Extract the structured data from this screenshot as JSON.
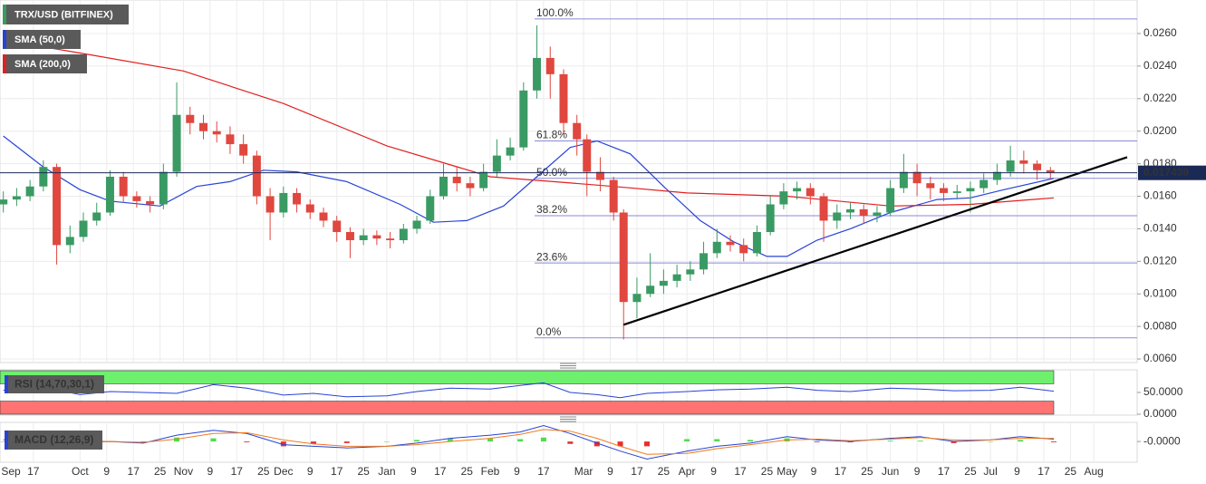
{
  "chart_data": [
    {
      "type": "candlestick",
      "title": "TRX/USD (BITFINEX)",
      "x": [
        "Sep 8",
        "Sep 12",
        "Sep 16",
        "Sep 20",
        "Sep 24",
        "Sep 28",
        "Oct 2",
        "Oct 6",
        "Oct 10",
        "Oct 14",
        "Oct 18",
        "Oct 22",
        "Oct 26",
        "Oct 30",
        "Nov 3",
        "Nov 7",
        "Nov 11",
        "Nov 15",
        "Nov 19",
        "Nov 23",
        "Nov 27",
        "Dec 1",
        "Dec 5",
        "Dec 9",
        "Dec 13",
        "Dec 17",
        "Dec 21",
        "Dec 25",
        "Dec 29",
        "Jan 2",
        "Jan 6",
        "Jan 10",
        "Jan 14",
        "Jan 18",
        "Jan 22",
        "Jan 26",
        "Jan 30",
        "Feb 3",
        "Feb 7",
        "Feb 11",
        "Feb 15",
        "Feb 19",
        "Feb 23",
        "Feb 27",
        "Mar 2",
        "Mar 6",
        "Mar 10",
        "Mar 13",
        "Mar 17",
        "Mar 21",
        "Mar 25",
        "Mar 29",
        "Apr 2",
        "Apr 6",
        "Apr 10",
        "Apr 14",
        "Apr 18",
        "Apr 22",
        "Apr 26",
        "Apr 30",
        "May 4",
        "May 8",
        "May 12",
        "May 16",
        "May 20",
        "May 24",
        "May 28",
        "Jun 1",
        "Jun 5",
        "Jun 9",
        "Jun 13",
        "Jun 17",
        "Jun 21",
        "Jun 25",
        "Jun 29",
        "Jul 3",
        "Jul 7",
        "Jul 11",
        "Jul 15",
        "Jul 19"
      ],
      "open": [
        0.0155,
        0.0158,
        0.016,
        0.0166,
        0.0178,
        0.013,
        0.0135,
        0.0145,
        0.015,
        0.0172,
        0.016,
        0.0157,
        0.0155,
        0.0175,
        0.021,
        0.0205,
        0.02,
        0.0198,
        0.0192,
        0.0185,
        0.016,
        0.015,
        0.0162,
        0.0155,
        0.015,
        0.0145,
        0.0138,
        0.0133,
        0.0136,
        0.0134,
        0.0133,
        0.014,
        0.0145,
        0.016,
        0.0172,
        0.0168,
        0.0165,
        0.0175,
        0.0185,
        0.019,
        0.0225,
        0.0245,
        0.0235,
        0.0205,
        0.0195,
        0.0175,
        0.017,
        0.015,
        0.0095,
        0.01,
        0.0105,
        0.0108,
        0.0112,
        0.0115,
        0.0125,
        0.0132,
        0.013,
        0.0125,
        0.0138,
        0.0155,
        0.0163,
        0.0165,
        0.016,
        0.0145,
        0.015,
        0.0152,
        0.0148,
        0.015,
        0.0165,
        0.0175,
        0.0168,
        0.0165,
        0.0162,
        0.0163,
        0.0165,
        0.017,
        0.0175,
        0.0182,
        0.018,
        0.0176
      ],
      "high": [
        0.0163,
        0.0165,
        0.017,
        0.0182,
        0.018,
        0.0142,
        0.015,
        0.0156,
        0.0176,
        0.0175,
        0.0163,
        0.016,
        0.018,
        0.023,
        0.0215,
        0.021,
        0.0206,
        0.0203,
        0.0198,
        0.0188,
        0.0165,
        0.0166,
        0.0165,
        0.0158,
        0.0153,
        0.0148,
        0.0141,
        0.014,
        0.0139,
        0.0138,
        0.0143,
        0.0148,
        0.0164,
        0.018,
        0.0178,
        0.0172,
        0.018,
        0.0195,
        0.0196,
        0.023,
        0.0265,
        0.0252,
        0.0238,
        0.021,
        0.0198,
        0.0184,
        0.0172,
        0.0152,
        0.011,
        0.0125,
        0.0115,
        0.0118,
        0.012,
        0.0132,
        0.014,
        0.0136,
        0.0134,
        0.0142,
        0.016,
        0.0168,
        0.0169,
        0.0168,
        0.0162,
        0.0155,
        0.0156,
        0.0155,
        0.0154,
        0.017,
        0.0186,
        0.018,
        0.0172,
        0.0168,
        0.0167,
        0.0169,
        0.0174,
        0.018,
        0.0191,
        0.0188,
        0.0182,
        0.0178
      ],
      "low": [
        0.015,
        0.0154,
        0.0157,
        0.0163,
        0.0118,
        0.0125,
        0.0132,
        0.0142,
        0.0148,
        0.0156,
        0.0153,
        0.015,
        0.0152,
        0.0172,
        0.0198,
        0.0195,
        0.0193,
        0.0186,
        0.018,
        0.0155,
        0.0133,
        0.0147,
        0.015,
        0.0146,
        0.0141,
        0.0132,
        0.0122,
        0.013,
        0.013,
        0.0128,
        0.0131,
        0.0137,
        0.0143,
        0.0158,
        0.0163,
        0.016,
        0.0163,
        0.0172,
        0.0182,
        0.0188,
        0.022,
        0.022,
        0.0198,
        0.0185,
        0.016,
        0.0163,
        0.0145,
        0.0072,
        0.0085,
        0.0098,
        0.01,
        0.0104,
        0.0108,
        0.0112,
        0.0122,
        0.0126,
        0.012,
        0.0123,
        0.0136,
        0.0152,
        0.0158,
        0.0155,
        0.0132,
        0.014,
        0.0146,
        0.0143,
        0.0144,
        0.0148,
        0.0162,
        0.016,
        0.0158,
        0.0157,
        0.0158,
        0.015,
        0.0162,
        0.0167,
        0.0172,
        0.0174,
        0.017,
        0.0171
      ],
      "close": [
        0.0158,
        0.016,
        0.0166,
        0.0178,
        0.013,
        0.0135,
        0.0145,
        0.015,
        0.0172,
        0.016,
        0.0157,
        0.0155,
        0.0175,
        0.021,
        0.0205,
        0.02,
        0.0198,
        0.0192,
        0.0185,
        0.016,
        0.015,
        0.0162,
        0.0155,
        0.015,
        0.0145,
        0.0138,
        0.0133,
        0.0136,
        0.0134,
        0.0133,
        0.014,
        0.0145,
        0.016,
        0.0172,
        0.0168,
        0.0165,
        0.0175,
        0.0185,
        0.019,
        0.0225,
        0.0245,
        0.0235,
        0.0205,
        0.0195,
        0.0175,
        0.017,
        0.015,
        0.0095,
        0.01,
        0.0105,
        0.0108,
        0.0112,
        0.0115,
        0.0125,
        0.0132,
        0.013,
        0.0125,
        0.0138,
        0.0155,
        0.0163,
        0.0165,
        0.016,
        0.0145,
        0.015,
        0.0152,
        0.0148,
        0.015,
        0.0165,
        0.0175,
        0.0168,
        0.0165,
        0.0162,
        0.0163,
        0.0165,
        0.017,
        0.0175,
        0.0182,
        0.018,
        0.0176,
        0.01744
      ],
      "up_color": "#3a9a63",
      "down_color": "#e0473f",
      "overlays": [
        {
          "name": "SMA (50,0)",
          "color": "#2743d6",
          "x": [
            "Sep 8",
            "Sep 20",
            "Oct 1",
            "Oct 10",
            "Oct 25",
            "Nov 5",
            "Nov 15",
            "Nov 25",
            "Dec 5",
            "Dec 20",
            "Jan 5",
            "Jan 15",
            "Jan 25",
            "Feb 5",
            "Feb 15",
            "Feb 25",
            "Mar 5",
            "Mar 15",
            "Mar 25",
            "Apr 5",
            "Apr 15",
            "Apr 25",
            "May 1",
            "May 10",
            "May 20",
            "Jun 1",
            "Jun 15",
            "Jun 25",
            "Jul 5",
            "Jul 20"
          ],
          "values": [
            0.0197,
            0.0178,
            0.0164,
            0.0157,
            0.0154,
            0.0166,
            0.0169,
            0.0176,
            0.0175,
            0.0169,
            0.0155,
            0.0144,
            0.0145,
            0.0154,
            0.0172,
            0.019,
            0.0194,
            0.0186,
            0.0166,
            0.0145,
            0.0132,
            0.0123,
            0.0123,
            0.0133,
            0.014,
            0.015,
            0.0158,
            0.0159,
            0.0164,
            0.0171
          ]
        },
        {
          "name": "SMA (200,0)",
          "color": "#e02020",
          "x": [
            "Sep 8",
            "Oct 1",
            "Nov 1",
            "Dec 1",
            "Jan 1",
            "Feb 1",
            "Feb 20",
            "Mar 10",
            "Apr 1",
            "May 1",
            "Jun 1",
            "Jun 25",
            "Jul 20"
          ],
          "values": [
            0.0256,
            0.0248,
            0.0237,
            0.0217,
            0.0191,
            0.0172,
            0.0169,
            0.0166,
            0.0162,
            0.016,
            0.0154,
            0.0155,
            0.0159
          ]
        }
      ],
      "fib_levels": [
        {
          "label": "100.0%",
          "value": 0.0269
        },
        {
          "label": "61.8%",
          "value": 0.0194
        },
        {
          "label": "50.0%",
          "value": 0.0171
        },
        {
          "label": "38.2%",
          "value": 0.0148
        },
        {
          "label": "23.6%",
          "value": 0.0119
        },
        {
          "label": "0.0%",
          "value": 0.0073
        }
      ],
      "fib_color": "#8a8ad8",
      "last_price": 0.017439,
      "last_price_color": "#1b2a55",
      "trendline": {
        "x": [
          "Mar 13",
          "Aug 11"
        ],
        "values": [
          0.0081,
          0.0184
        ],
        "color": "#000000"
      },
      "ylim": [
        0.00578,
        0.02806
      ],
      "yticks": [
        {
          "value": 0.006,
          "label": "0.0060"
        },
        {
          "value": 0.008,
          "label": "0.0080"
        },
        {
          "value": 0.01,
          "label": "0.0100"
        },
        {
          "value": 0.012,
          "label": "0.0120"
        },
        {
          "value": 0.014,
          "label": "0.0140"
        },
        {
          "value": 0.016,
          "label": "0.0160"
        },
        {
          "value": 0.018,
          "label": "0.0180"
        },
        {
          "value": 0.02,
          "label": "0.0200"
        },
        {
          "value": 0.022,
          "label": "0.0220"
        },
        {
          "value": 0.024,
          "label": "0.0240"
        },
        {
          "value": 0.026,
          "label": "0.0260"
        }
      ],
      "xlim": [
        "Sep 7",
        "Aug 14"
      ],
      "xticks": [
        "Sep",
        17,
        "Oct",
        9,
        17,
        25,
        "Nov",
        9,
        17,
        25,
        "Dec",
        9,
        17,
        25,
        "Jan",
        9,
        17,
        25,
        "Feb",
        9,
        17,
        "Mar",
        9,
        17,
        25,
        "Apr",
        9,
        17,
        25,
        "May",
        9,
        17,
        25,
        "Jun",
        9,
        17,
        25,
        "Jul",
        9,
        17,
        25,
        "Aug"
      ],
      "grid": true
    },
    {
      "type": "line",
      "title": "RSI (14,70,30,1)",
      "color": "#2743d6",
      "x": [
        "Sep 8",
        "Sep 20",
        "Oct 1",
        "Oct 10",
        "Oct 20",
        "Oct 30",
        "Nov 10",
        "Nov 20",
        "Dec 1",
        "Dec 10",
        "Dec 20",
        "Jan 1",
        "Jan 10",
        "Jan 20",
        "Feb 1",
        "Feb 10",
        "Feb 17",
        "Feb 25",
        "Mar 5",
        "Mar 12",
        "Mar 20",
        "Apr 1",
        "Apr 10",
        "Apr 20",
        "May 1",
        "May 10",
        "May 20",
        "Jun 1",
        "Jun 10",
        "Jun 20",
        "Jul 1",
        "Jul 10",
        "Jul 20"
      ],
      "values": [
        55,
        62,
        45,
        52,
        50,
        48,
        68,
        60,
        44,
        48,
        40,
        42,
        52,
        60,
        58,
        66,
        72,
        50,
        45,
        38,
        48,
        52,
        56,
        58,
        62,
        55,
        52,
        60,
        58,
        54,
        55,
        62,
        53
      ],
      "overbought": 70,
      "oversold": 30,
      "overbought_color": "#6ef06e",
      "oversold_color": "#ff7373",
      "ylim": [
        0,
        100
      ],
      "yticks": [
        {
          "value": 50,
          "label": "50.0000"
        },
        {
          "value": 0,
          "label": "0.0000"
        }
      ]
    },
    {
      "type": "macd",
      "title": "MACD (12,26,9)",
      "macd_color": "#2743d6",
      "signal_color": "#f07a1e",
      "hist_up_color": "#4edc4e",
      "hist_down_color": "#e53030",
      "x": [
        "Sep 8",
        "Sep 20",
        "Oct 1",
        "Oct 10",
        "Oct 20",
        "Oct 30",
        "Nov 10",
        "Nov 20",
        "Dec 1",
        "Dec 10",
        "Dec 20",
        "Jan 1",
        "Jan 10",
        "Jan 20",
        "Feb 1",
        "Feb 10",
        "Feb 17",
        "Feb 25",
        "Mar 5",
        "Mar 12",
        "Mar 20",
        "Apr 1",
        "Apr 10",
        "Apr 20",
        "May 1",
        "May 10",
        "May 20",
        "Jun 1",
        "Jun 10",
        "Jun 20",
        "Jul 1",
        "Jul 10",
        "Jul 20"
      ],
      "macd": [
        0.0002,
        0.0004,
        -0.0001,
        0,
        -0.0002,
        0.0008,
        0.0014,
        0.001,
        -0.0004,
        -0.0006,
        -0.0008,
        -0.0006,
        -0.0002,
        0.0004,
        0.0008,
        0.0012,
        0.002,
        0.001,
        -0.0002,
        -0.0012,
        -0.0022,
        -0.0012,
        -0.0006,
        -0.0002,
        0.0006,
        0.0002,
        0,
        0.0004,
        0.0006,
        0,
        0.0002,
        0.0006,
        0.0003
      ],
      "signal": [
        0.0002,
        0.0003,
        0.0001,
        0,
        -0.0001,
        0.0003,
        0.001,
        0.0011,
        0.0002,
        -0.0003,
        -0.0006,
        -0.0006,
        -0.0004,
        0,
        0.0004,
        0.0009,
        0.0015,
        0.0013,
        0.0004,
        -0.0006,
        -0.0016,
        -0.0015,
        -0.0009,
        -0.0004,
        0.0002,
        0.0003,
        0.0001,
        0.0003,
        0.0005,
        0.0002,
        0.0002,
        0.0004,
        0.0004
      ],
      "histogram": [
        0,
        0.0001,
        -0.0002,
        0,
        -0.0001,
        0.0005,
        0.0004,
        -0.0001,
        -0.0006,
        -0.0003,
        -0.0002,
        0,
        0.0002,
        0.0004,
        0.0004,
        0.0003,
        0.0005,
        -0.0003,
        -0.0006,
        -0.0006,
        -0.0006,
        0.0003,
        0.0003,
        0.0002,
        0.0004,
        -0.0001,
        -0.0001,
        0.0001,
        0.0001,
        -0.0002,
        0,
        0.0002,
        -0.0001
      ],
      "ylim": [
        -0.0026,
        0.0024
      ],
      "yticks": [
        {
          "value": 0,
          "label": "-0.0000"
        }
      ]
    }
  ]
}
